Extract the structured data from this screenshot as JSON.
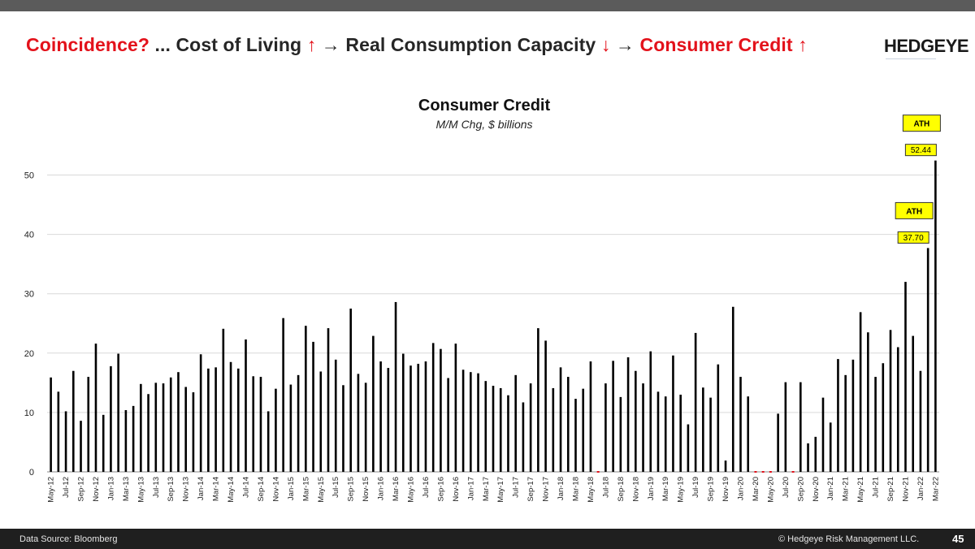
{
  "headline": {
    "part1": "Coincidence?",
    "part2": " ... Cost of Living ",
    "arrow_up_1": "↑",
    "part3": " → Real Consumption Capacity ",
    "arrow_down": "↓",
    "part4": " → ",
    "part5": "Consumer Credit ",
    "arrow_up_2": "↑"
  },
  "brand": "HEDGEYE",
  "footer": {
    "source": "Data Source: Bloomberg",
    "copyright": "© Hedgeye Risk Management LLC.",
    "page_number": "45"
  },
  "colors": {
    "accent_red": "#e3121b",
    "bar": "#000000",
    "annotation_fill": "#ffff00",
    "negative_bar": "#e3121b"
  },
  "chart_data": {
    "type": "bar",
    "title": "Consumer Credit",
    "subtitle": "M/M Chg, $ billions",
    "xlabel": "",
    "ylabel": "",
    "ylim": [
      0,
      55
    ],
    "yticks": [
      0,
      10,
      20,
      30,
      40,
      50
    ],
    "grid": true,
    "categories": [
      "May-12",
      "Jun-12",
      "Jul-12",
      "Aug-12",
      "Sep-12",
      "Oct-12",
      "Nov-12",
      "Dec-12",
      "Jan-13",
      "Feb-13",
      "Mar-13",
      "Apr-13",
      "May-13",
      "Jun-13",
      "Jul-13",
      "Aug-13",
      "Sep-13",
      "Oct-13",
      "Nov-13",
      "Dec-13",
      "Jan-14",
      "Feb-14",
      "Mar-14",
      "Apr-14",
      "May-14",
      "Jun-14",
      "Jul-14",
      "Aug-14",
      "Sep-14",
      "Oct-14",
      "Nov-14",
      "Dec-14",
      "Jan-15",
      "Feb-15",
      "Mar-15",
      "Apr-15",
      "May-15",
      "Jun-15",
      "Jul-15",
      "Aug-15",
      "Sep-15",
      "Oct-15",
      "Nov-15",
      "Dec-15",
      "Jan-16",
      "Feb-16",
      "Mar-16",
      "Apr-16",
      "May-16",
      "Jun-16",
      "Jul-16",
      "Aug-16",
      "Sep-16",
      "Oct-16",
      "Nov-16",
      "Dec-16",
      "Jan-17",
      "Feb-17",
      "Mar-17",
      "Apr-17",
      "May-17",
      "Jun-17",
      "Jul-17",
      "Aug-17",
      "Sep-17",
      "Oct-17",
      "Nov-17",
      "Dec-17",
      "Jan-18",
      "Feb-18",
      "Mar-18",
      "Apr-18",
      "May-18",
      "Jun-18",
      "Jul-18",
      "Aug-18",
      "Sep-18",
      "Oct-18",
      "Nov-18",
      "Dec-18",
      "Jan-19",
      "Feb-19",
      "Mar-19",
      "Apr-19",
      "May-19",
      "Jun-19",
      "Jul-19",
      "Aug-19",
      "Sep-19",
      "Oct-19",
      "Nov-19",
      "Dec-19",
      "Jan-20",
      "Feb-20",
      "Mar-20",
      "Apr-20",
      "May-20",
      "Jun-20",
      "Jul-20",
      "Aug-20",
      "Sep-20",
      "Oct-20",
      "Nov-20",
      "Dec-20",
      "Jan-21",
      "Feb-21",
      "Mar-21",
      "Apr-21",
      "May-21",
      "Jun-21",
      "Jul-21",
      "Aug-21",
      "Sep-21",
      "Oct-21",
      "Nov-21",
      "Dec-21",
      "Jan-22",
      "Feb-22",
      "Mar-22"
    ],
    "x_tick_labels": [
      "May-12",
      "Jul-12",
      "Sep-12",
      "Nov-12",
      "Jan-13",
      "Mar-13",
      "May-13",
      "Jul-13",
      "Sep-13",
      "Nov-13",
      "Jan-14",
      "Mar-14",
      "May-14",
      "Jul-14",
      "Sep-14",
      "Nov-14",
      "Jan-15",
      "Mar-15",
      "May-15",
      "Jul-15",
      "Sep-15",
      "Nov-15",
      "Jan-16",
      "Mar-16",
      "May-16",
      "Jul-16",
      "Sep-16",
      "Nov-16",
      "Jan-17",
      "Mar-17",
      "May-17",
      "Jul-17",
      "Sep-17",
      "Nov-17",
      "Jan-18",
      "Mar-18",
      "May-18",
      "Jul-18",
      "Sep-18",
      "Nov-18",
      "Jan-19",
      "Mar-19",
      "May-19",
      "Jul-19",
      "Sep-19",
      "Nov-19",
      "Jan-20",
      "Mar-20",
      "May-20",
      "Jul-20",
      "Sep-20",
      "Nov-20",
      "Jan-21",
      "Mar-21",
      "May-21",
      "Jul-21",
      "Sep-21",
      "Nov-21",
      "Jan-22",
      "Mar-22"
    ],
    "values": [
      15.9,
      13.5,
      10.2,
      17.0,
      8.6,
      16.0,
      21.6,
      9.6,
      17.8,
      19.9,
      10.4,
      11.1,
      14.8,
      13.1,
      15.0,
      14.9,
      15.9,
      16.8,
      14.3,
      13.4,
      19.8,
      17.4,
      17.6,
      24.1,
      18.5,
      17.4,
      22.3,
      16.1,
      16.0,
      10.2,
      14.0,
      25.9,
      14.7,
      16.3,
      24.6,
      21.9,
      16.9,
      24.2,
      18.9,
      14.6,
      27.5,
      16.5,
      15.0,
      22.9,
      18.6,
      17.5,
      28.6,
      19.9,
      17.9,
      18.2,
      18.6,
      21.7,
      20.7,
      15.8,
      21.6,
      17.2,
      16.8,
      16.6,
      15.3,
      14.5,
      14.1,
      12.9,
      16.3,
      11.7,
      14.9,
      24.2,
      22.1,
      14.1,
      17.6,
      16.0,
      12.3,
      14.0,
      18.6,
      -0.3,
      14.9,
      18.7,
      12.6,
      19.3,
      17.0,
      14.9,
      20.3,
      13.5,
      12.7,
      19.6,
      13.0,
      8.0,
      23.4,
      14.2,
      12.5,
      18.1,
      1.9,
      27.8,
      16.0,
      12.7,
      -0.3,
      -0.3,
      -0.3,
      9.8,
      15.1,
      -0.3,
      15.1,
      4.8,
      5.9,
      12.5,
      8.3,
      19.0,
      16.3,
      18.9,
      26.9,
      23.5,
      16.0,
      18.3,
      23.9,
      21.0,
      32.0,
      22.9,
      17.0,
      37.7,
      52.44
    ],
    "annotations": [
      {
        "category": "Feb-22",
        "label": "ATH",
        "value_label": "37.70"
      },
      {
        "category": "Mar-22",
        "label": "ATH",
        "value_label": "52.44"
      }
    ]
  }
}
